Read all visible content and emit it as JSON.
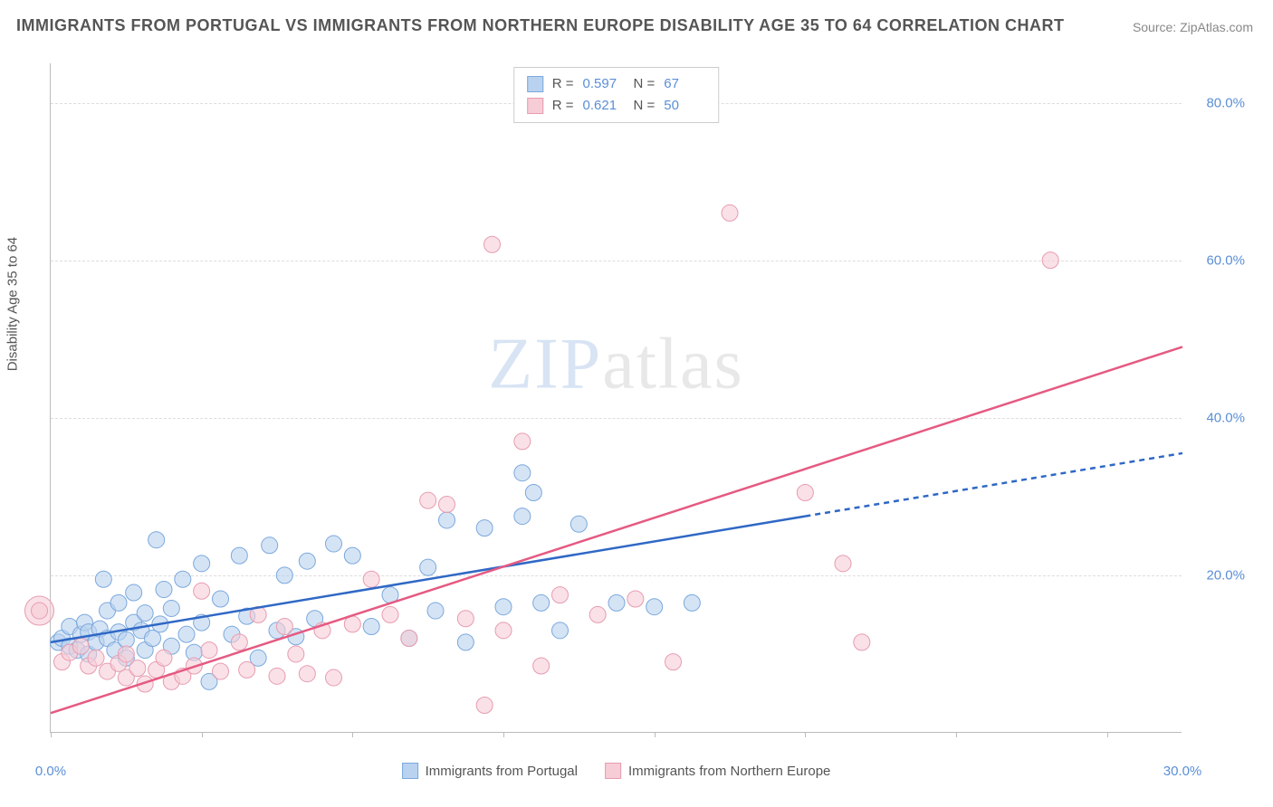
{
  "title": "IMMIGRANTS FROM PORTUGAL VS IMMIGRANTS FROM NORTHERN EUROPE DISABILITY AGE 35 TO 64 CORRELATION CHART",
  "source": "Source: ZipAtlas.com",
  "watermark": {
    "zip": "ZIP",
    "rest": "atlas"
  },
  "y_axis_label": "Disability Age 35 to 64",
  "chart": {
    "type": "scatter",
    "xlim": [
      0,
      30
    ],
    "ylim": [
      0,
      85
    ],
    "xticks": [
      0,
      4,
      8,
      12,
      16,
      20,
      24,
      28
    ],
    "xtick_labels_shown": {
      "0": "0.0%",
      "30": "30.0%"
    },
    "yticks": [
      20,
      40,
      60,
      80
    ],
    "ytick_labels": [
      "20.0%",
      "40.0%",
      "60.0%",
      "80.0%"
    ],
    "grid_color": "#dddddd",
    "background_color": "#ffffff",
    "axis_color": "#bbbbbb",
    "tick_label_color": "#5b8fd6",
    "label_fontsize": 15,
    "title_fontsize": 18,
    "series": [
      {
        "name": "Immigrants from Portugal",
        "marker_fill": "#b9d2ef",
        "marker_stroke": "#7ba8dd",
        "marker_radius": 9,
        "fill_opacity": 0.6,
        "R": "0.597",
        "N": "67",
        "regression": {
          "solid": {
            "x1": 0,
            "y1": 11.5,
            "x2": 20,
            "y2": 27.5
          },
          "dashed": {
            "x1": 20,
            "y1": 27.5,
            "x2": 30,
            "y2": 35.5
          },
          "line_color": "#2f68c5",
          "line_width": 2.5,
          "dash_pattern": "6,5"
        },
        "points": [
          [
            0.2,
            11.5
          ],
          [
            0.3,
            12.0
          ],
          [
            0.5,
            11.0
          ],
          [
            0.5,
            13.5
          ],
          [
            0.7,
            10.5
          ],
          [
            0.8,
            12.5
          ],
          [
            0.9,
            14.0
          ],
          [
            1.0,
            10.0
          ],
          [
            1.0,
            12.8
          ],
          [
            1.2,
            11.5
          ],
          [
            1.3,
            13.2
          ],
          [
            1.4,
            19.5
          ],
          [
            1.5,
            12.0
          ],
          [
            1.5,
            15.5
          ],
          [
            1.7,
            10.5
          ],
          [
            1.8,
            12.8
          ],
          [
            1.8,
            16.5
          ],
          [
            2.0,
            9.5
          ],
          [
            2.0,
            11.8
          ],
          [
            2.2,
            14.0
          ],
          [
            2.2,
            17.8
          ],
          [
            2.4,
            13.0
          ],
          [
            2.5,
            10.5
          ],
          [
            2.5,
            15.2
          ],
          [
            2.7,
            12.0
          ],
          [
            2.8,
            24.5
          ],
          [
            2.9,
            13.8
          ],
          [
            3.0,
            18.2
          ],
          [
            3.2,
            11.0
          ],
          [
            3.2,
            15.8
          ],
          [
            3.5,
            19.5
          ],
          [
            3.6,
            12.5
          ],
          [
            3.8,
            10.2
          ],
          [
            4.0,
            14.0
          ],
          [
            4.0,
            21.5
          ],
          [
            4.2,
            6.5
          ],
          [
            4.5,
            17.0
          ],
          [
            4.8,
            12.5
          ],
          [
            5.0,
            22.5
          ],
          [
            5.2,
            14.8
          ],
          [
            5.5,
            9.5
          ],
          [
            5.8,
            23.8
          ],
          [
            6.0,
            13.0
          ],
          [
            6.2,
            20.0
          ],
          [
            6.5,
            12.2
          ],
          [
            6.8,
            21.8
          ],
          [
            7.0,
            14.5
          ],
          [
            7.5,
            24.0
          ],
          [
            8.0,
            22.5
          ],
          [
            8.5,
            13.5
          ],
          [
            9.0,
            17.5
          ],
          [
            9.5,
            12.0
          ],
          [
            10.0,
            21.0
          ],
          [
            10.2,
            15.5
          ],
          [
            10.5,
            27.0
          ],
          [
            11.0,
            11.5
          ],
          [
            11.5,
            26.0
          ],
          [
            12.0,
            16.0
          ],
          [
            12.5,
            33.0
          ],
          [
            12.5,
            27.5
          ],
          [
            12.8,
            30.5
          ],
          [
            13.0,
            16.5
          ],
          [
            13.5,
            13.0
          ],
          [
            14.0,
            26.5
          ],
          [
            15.0,
            16.5
          ],
          [
            16.0,
            16.0
          ],
          [
            17.0,
            16.5
          ]
        ]
      },
      {
        "name": "Immigrants from Northern Europe",
        "marker_fill": "#f6cdd7",
        "marker_stroke": "#e79cb0",
        "marker_radius": 9,
        "fill_opacity": 0.6,
        "R": "0.621",
        "N": "50",
        "regression": {
          "solid": {
            "x1": 0,
            "y1": 2.5,
            "x2": 30,
            "y2": 49.0
          },
          "line_color": "#e55a82",
          "line_width": 2.5
        },
        "points": [
          [
            -0.3,
            15.5
          ],
          [
            0.3,
            9.0
          ],
          [
            0.5,
            10.2
          ],
          [
            0.8,
            11.0
          ],
          [
            1.0,
            8.5
          ],
          [
            1.2,
            9.5
          ],
          [
            1.5,
            7.8
          ],
          [
            1.8,
            8.8
          ],
          [
            2.0,
            7.0
          ],
          [
            2.0,
            10.0
          ],
          [
            2.3,
            8.2
          ],
          [
            2.5,
            6.2
          ],
          [
            2.8,
            8.0
          ],
          [
            3.0,
            9.5
          ],
          [
            3.2,
            6.5
          ],
          [
            3.5,
            7.2
          ],
          [
            3.8,
            8.5
          ],
          [
            4.0,
            18.0
          ],
          [
            4.2,
            10.5
          ],
          [
            4.5,
            7.8
          ],
          [
            5.0,
            11.5
          ],
          [
            5.2,
            8.0
          ],
          [
            5.5,
            15.0
          ],
          [
            6.0,
            7.2
          ],
          [
            6.2,
            13.5
          ],
          [
            6.5,
            10.0
          ],
          [
            6.8,
            7.5
          ],
          [
            7.2,
            13.0
          ],
          [
            7.5,
            7.0
          ],
          [
            8.0,
            13.8
          ],
          [
            8.5,
            19.5
          ],
          [
            9.0,
            15.0
          ],
          [
            9.5,
            12.0
          ],
          [
            10.0,
            29.5
          ],
          [
            10.5,
            29.0
          ],
          [
            11.0,
            14.5
          ],
          [
            11.5,
            3.5
          ],
          [
            11.7,
            62.0
          ],
          [
            12.0,
            13.0
          ],
          [
            12.5,
            37.0
          ],
          [
            13.0,
            8.5
          ],
          [
            13.5,
            17.5
          ],
          [
            14.5,
            15.0
          ],
          [
            15.5,
            17.0
          ],
          [
            16.5,
            9.0
          ],
          [
            18.0,
            66.0
          ],
          [
            20.0,
            30.5
          ],
          [
            21.0,
            21.5
          ],
          [
            21.5,
            11.5
          ],
          [
            26.5,
            60.0
          ]
        ],
        "points_large": [
          {
            "xy": [
              -0.3,
              15.5
            ],
            "r": 16
          }
        ]
      }
    ]
  },
  "legend_top": {
    "rows": [
      {
        "swatch_fill": "#b9d2ef",
        "swatch_stroke": "#7ba8dd",
        "r_label": "R =",
        "r_val": "0.597",
        "n_label": "N =",
        "n_val": "67"
      },
      {
        "swatch_fill": "#f6cdd7",
        "swatch_stroke": "#e79cb0",
        "r_label": "R =",
        "r_val": "0.621",
        "n_label": "N =",
        "n_val": "50"
      }
    ]
  },
  "legend_bottom": [
    {
      "swatch_fill": "#b9d2ef",
      "swatch_stroke": "#7ba8dd",
      "label": "Immigrants from Portugal"
    },
    {
      "swatch_fill": "#f6cdd7",
      "swatch_stroke": "#e79cb0",
      "label": "Immigrants from Northern Europe"
    }
  ]
}
